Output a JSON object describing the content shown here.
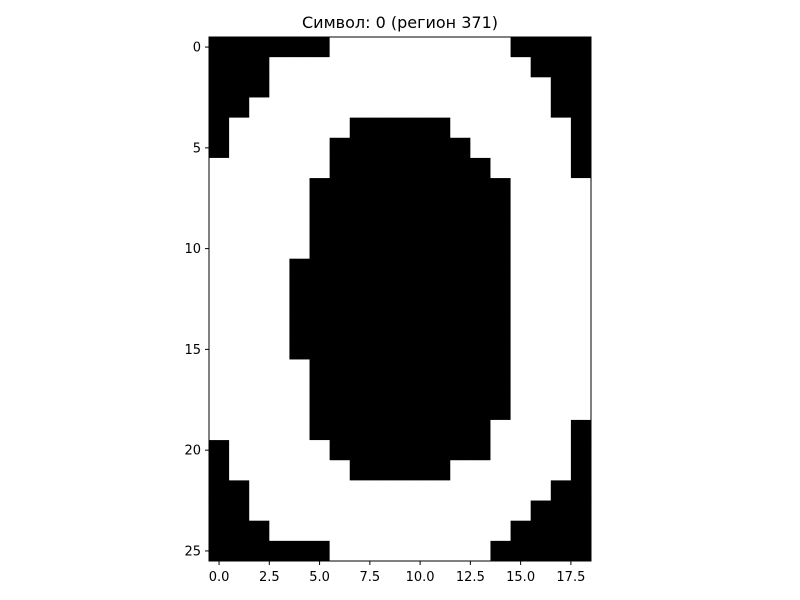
{
  "chart_data": {
    "type": "heatmap",
    "title": "Символ: 0 (регион 371)",
    "xlabel": "",
    "ylabel": "",
    "xlim": [
      -0.5,
      18.5
    ],
    "ylim": [
      25.5,
      -0.5
    ],
    "x_ticks": [
      "0.0",
      "2.5",
      "5.0",
      "7.5",
      "10.0",
      "12.5",
      "15.0",
      "17.5"
    ],
    "x_tick_values": [
      0,
      2.5,
      5,
      7.5,
      10,
      12.5,
      15,
      17.5
    ],
    "y_ticks": [
      "0",
      "5",
      "10",
      "15",
      "20",
      "25"
    ],
    "y_tick_values": [
      0,
      5,
      10,
      15,
      20,
      25
    ],
    "colormap": "gray",
    "colors": {
      "black": "#000000",
      "white": "#ffffff"
    },
    "grid": false,
    "rows": [
      "1111110000000001111",
      "1110000000000000111",
      "1110000000000000011",
      "1100000000000000011",
      "1000000111110000001",
      "1000001111111000001",
      "0000001111111100001",
      "0000011111111110000",
      "0000011111111110000",
      "0000011111111110000",
      "0000011111111110000",
      "0000111111111110000",
      "0000111111111110000",
      "0000111111111110000",
      "0000111111111110000",
      "0000111111111110000",
      "0000011111111110000",
      "0000011111111110000",
      "0000011111111110000",
      "0000011111111100001",
      "1000001111111100001",
      "1000000111110000001",
      "1100000000000000011",
      "1100000000000000111",
      "1110000000000001111",
      "1111110000000011111"
    ]
  }
}
